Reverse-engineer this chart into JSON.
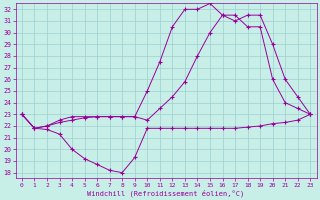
{
  "background_color": "#c8eee8",
  "grid_color": "#9ecfcf",
  "line_color": "#990099",
  "marker_color": "#990099",
  "xlabel": "Windchill (Refroidissement éolien,°C)",
  "xlim": [
    -0.5,
    23.5
  ],
  "ylim": [
    17.5,
    32.5
  ],
  "yticks": [
    18,
    19,
    20,
    21,
    22,
    23,
    24,
    25,
    26,
    27,
    28,
    29,
    30,
    31,
    32
  ],
  "xticks": [
    0,
    1,
    2,
    3,
    4,
    5,
    6,
    7,
    8,
    9,
    10,
    11,
    12,
    13,
    14,
    15,
    16,
    17,
    18,
    19,
    20,
    21,
    22,
    23
  ],
  "series1_x": [
    0,
    1,
    2,
    3,
    4,
    5,
    6,
    7,
    8,
    9,
    10,
    11,
    12,
    13,
    14,
    15,
    16,
    17,
    18,
    19,
    20,
    21,
    22,
    23
  ],
  "series1_y": [
    23.0,
    21.8,
    21.7,
    21.3,
    20.0,
    19.2,
    18.7,
    18.2,
    18.0,
    19.3,
    21.8,
    21.8,
    21.8,
    21.8,
    21.8,
    21.8,
    21.8,
    21.8,
    21.9,
    22.0,
    22.2,
    22.3,
    22.5,
    23.0
  ],
  "series2_x": [
    0,
    1,
    2,
    3,
    4,
    5,
    6,
    7,
    8,
    9,
    10,
    11,
    12,
    13,
    14,
    15,
    16,
    17,
    18,
    19,
    20,
    21,
    22,
    23
  ],
  "series2_y": [
    23.0,
    21.8,
    22.0,
    22.3,
    22.5,
    22.7,
    22.8,
    22.8,
    22.8,
    22.8,
    22.5,
    23.5,
    24.5,
    25.8,
    28.0,
    30.0,
    31.5,
    31.0,
    31.5,
    31.5,
    29.0,
    26.0,
    24.5,
    23.0
  ],
  "series3_x": [
    0,
    1,
    2,
    3,
    4,
    5,
    6,
    7,
    8,
    9,
    10,
    11,
    12,
    13,
    14,
    15,
    16,
    17,
    18,
    19,
    20,
    21,
    22,
    23
  ],
  "series3_y": [
    23.0,
    21.8,
    22.0,
    22.5,
    22.8,
    22.8,
    22.8,
    22.8,
    22.8,
    22.8,
    25.0,
    27.5,
    30.5,
    32.0,
    32.0,
    32.5,
    31.5,
    31.5,
    30.5,
    30.5,
    26.0,
    24.0,
    23.5,
    23.0
  ]
}
